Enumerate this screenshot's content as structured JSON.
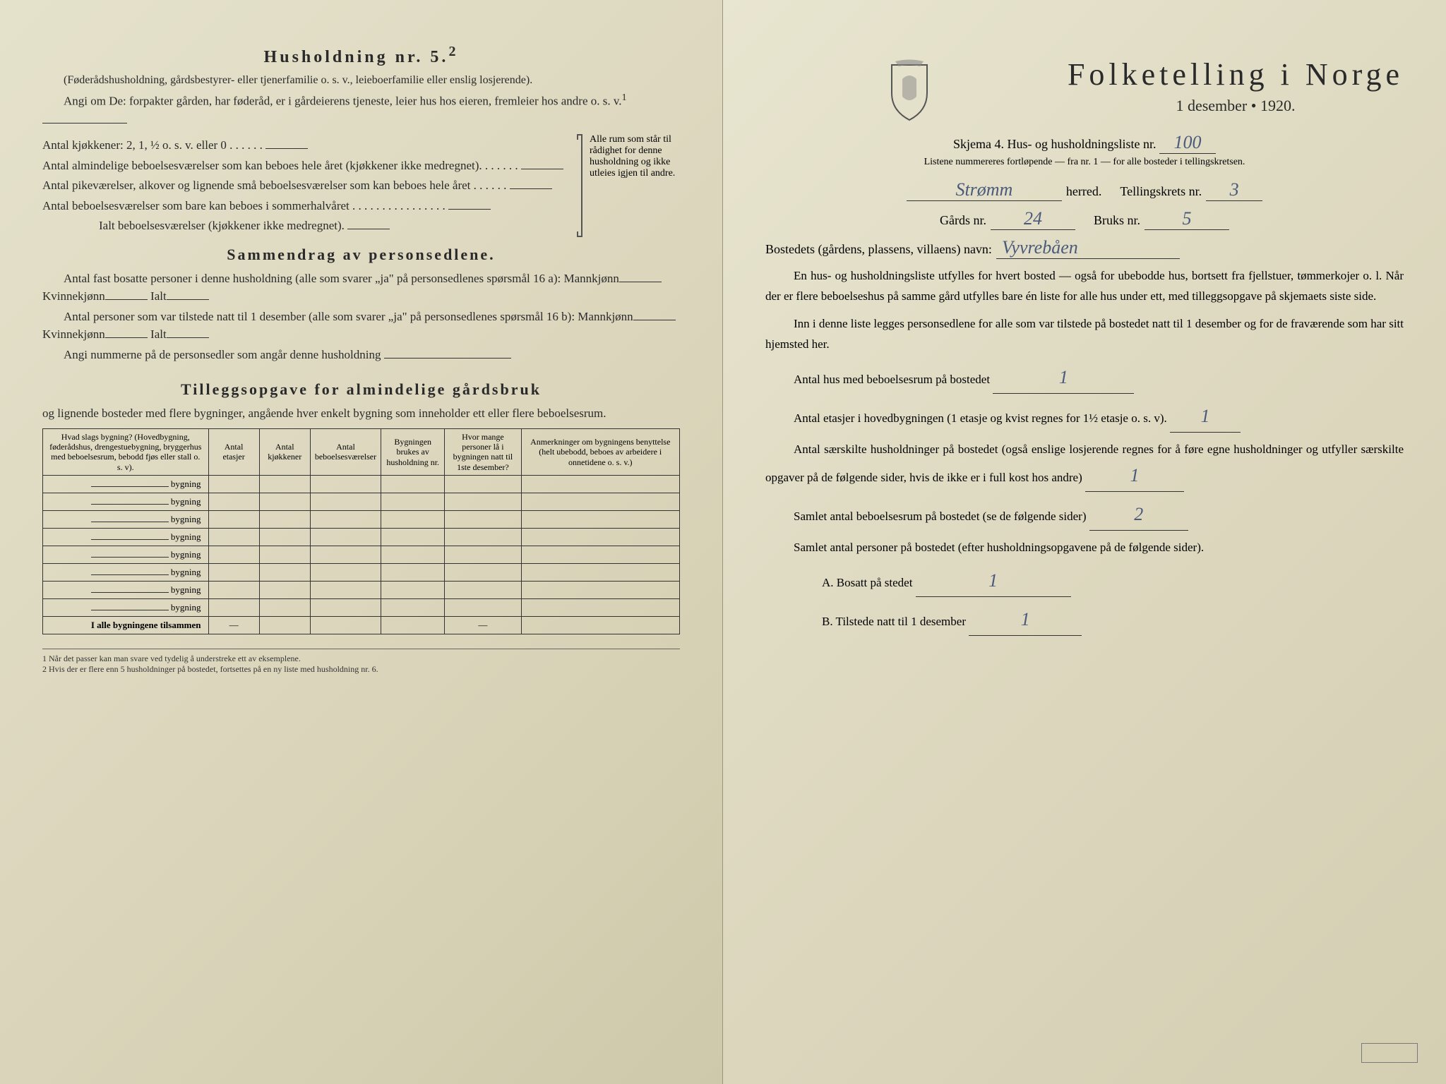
{
  "left": {
    "household_title": "Husholdning nr. 5.",
    "household_sup": "2",
    "household_sub1": "(Føderådshusholdning, gårdsbestyrer- eller tjenerfamilie o. s. v., leieboerfamilie eller enslig losjerende).",
    "household_sub2": "Angi om De: forpakter gården, har føderåd, er i gårdeierens tjeneste, leier hus hos eieren, fremleier hos andre o. s. v.",
    "household_sup2": "1",
    "kitchen_label": "Antal kjøkkener: 2, 1, ½ o. s. v. eller 0 . . . . . .",
    "rooms_label1": "Antal almindelige beboelsesværelser som kan beboes hele året (kjøkkener ikke medregnet). . . . . . .",
    "rooms_label2": "Antal pikeværelser, alkover og lignende små beboelsesværelser som kan beboes hele året . . . . . .",
    "rooms_label3": "Antal beboelsesværelser som bare kan beboes i sommerhalvåret . . . . . . . . . . . . . . . .",
    "rooms_total": "Ialt beboelsesværelser (kjøkkener ikke medregnet).",
    "bracket_text": "Alle rum som står til rådighet for denne husholdning og ikke utleies igjen til andre.",
    "summary_title": "Sammendrag av personsedlene.",
    "summary_line1a": "Antal fast bosatte personer i denne husholdning (alle som svarer „ja\" på personsedlenes spørsmål 16 a): Mannkjønn",
    "summary_kvinne": "Kvinnekjønn",
    "summary_ialt": "Ialt",
    "summary_line2a": "Antal personer som var tilstede natt til 1 desember (alle som svarer „ja\" på personsedlenes spørsmål 16 b): Mannkjønn",
    "summary_line3": "Angi nummerne på de personsedler som angår denne husholdning",
    "tillegg_title": "Tilleggsopgave for almindelige gårdsbruk",
    "tillegg_sub": "og lignende bosteder med flere bygninger, angående hver enkelt bygning som inneholder ett eller flere beboelsesrum.",
    "table_headers": [
      "Hvad slags bygning? (Hovedbygning, føderådshus, drengestuebygning, bryggerhus med beboelsesrum, bebodd fjøs eller stall o. s. v).",
      "Antal etasjer",
      "Antal kjøkkener",
      "Antal beboelsesværelser",
      "Bygningen brukes av husholdning nr.",
      "Hvor mange personer lå i bygningen natt til 1ste desember?",
      "Anmerkninger om bygningens benyttelse (helt ubebodd, beboes av arbeidere i onnetidene o. s. v.)"
    ],
    "row_label": "bygning",
    "total_row": "I alle bygningene tilsammen",
    "footnote1": "1   Når det passer kan man svare ved tydelig å understreke ett av eksemplene.",
    "footnote2": "2   Hvis der er flere enn 5 husholdninger på bostedet, fortsettes på en ny liste med husholdning nr. 6."
  },
  "right": {
    "main_title": "Folketelling i Norge",
    "date": "1 desember • 1920.",
    "skjema": "Skjema 4.   Hus- og husholdningsliste nr.",
    "list_nr": "100",
    "sub_note": "Listene nummereres fortløpende — fra nr. 1 — for alle bosteder i tellingskretsen.",
    "herred_value": "Strømm",
    "herred_label": "herred.",
    "krets_label": "Tellingskrets nr.",
    "krets_value": "3",
    "gards_label": "Gårds nr.",
    "gards_value": "24",
    "bruks_label": "Bruks nr.",
    "bruks_value": "5",
    "bosted_label": "Bostedets (gårdens, plassens, villaens) navn:",
    "bosted_value": "Vyvrebåen",
    "para1": "En hus- og husholdningsliste utfylles for hvert bosted — også for ubebodde hus, bortsett fra fjellstuer, tømmerkojer o. l.  Når der er flere beboelseshus på samme gård utfylles bare én liste for alle hus under ett, med tilleggsopgave på skjemaets siste side.",
    "para2": "Inn i denne liste legges personsedlene for alle som var tilstede på bostedet natt til 1 desember og for de fraværende som har sitt hjemsted her.",
    "q1_label": "Antal hus med beboelsesrum på bostedet",
    "q1_value": "1",
    "q2_label": "Antal etasjer i hovedbygningen (1 etasje og kvist regnes for 1½ etasje o. s. v).",
    "q2_value": "1",
    "q3_label": "Antal særskilte husholdninger på bostedet (også enslige losjerende regnes for å føre egne husholdninger og utfyller særskilte opgaver på de følgende sider, hvis de ikke er i full kost hos andre)",
    "q3_value": "1",
    "q4_label": "Samlet antal beboelsesrum på bostedet (se de følgende sider)",
    "q4_value": "2",
    "q5_label": "Samlet antal personer på bostedet (efter husholdningsopgavene på de følgende sider).",
    "q5a_label": "A.   Bosatt på stedet",
    "q5a_value": "1",
    "q5b_label": "B.   Tilstede natt til 1 desember",
    "q5b_value": "1"
  },
  "colors": {
    "paper_bg": "#ddd8bf",
    "text": "#2a2a2a",
    "handwriting": "#4a5a7a",
    "border": "#333333"
  }
}
